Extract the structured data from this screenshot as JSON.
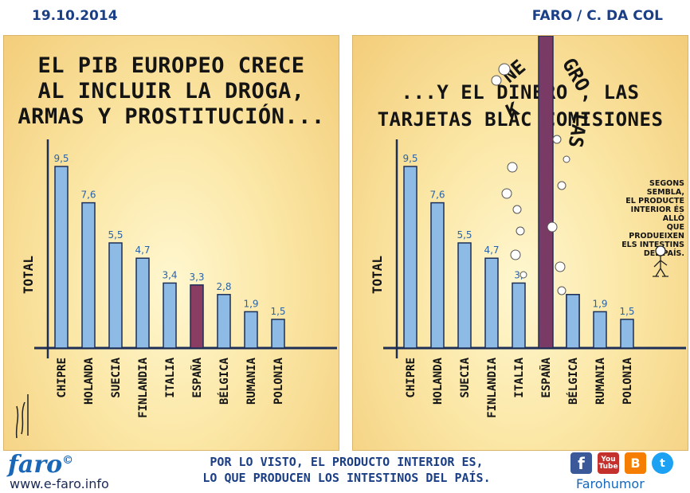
{
  "header": {
    "date": "19.10.2014",
    "credit": "FARO / C. DA COL"
  },
  "left_panel": {
    "caption": [
      "EL PIB EUROPEO CRECE",
      "AL INCLUIR LA DROGA,",
      "ARMAS Y PROSTITUCIÓN..."
    ]
  },
  "right_panel": {
    "caption": [
      "...Y EL DINERO                , LAS",
      "TARJETAS BLAC        COMISIONES"
    ],
    "falling_words": [
      "NE",
      "K",
      "GRO",
      "LAS"
    ],
    "side_note": [
      "SEGONS SEMBLA,",
      "EL PRODUCTE",
      "INTERIOR ÉS ALLÒ",
      "QUE PRODUEIXEN",
      "ELS INTESTINS",
      "DEL PAÍS."
    ]
  },
  "chart_data": [
    {
      "type": "bar",
      "ylabel": "TOTAL",
      "categories": [
        "CHIPRE",
        "HOLANDA",
        "SUECIA",
        "FINLANDIA",
        "ITALIA",
        "ESPAÑA",
        "BÉLGICA",
        "RUMANIA",
        "POLONIA"
      ],
      "values": [
        9.5,
        7.6,
        5.5,
        4.7,
        3.4,
        3.3,
        2.8,
        1.9,
        1.5
      ],
      "value_labels": [
        "9,5",
        "7,6",
        "5,5",
        "4,7",
        "3,4",
        "3,3",
        "2,8",
        "1,9",
        "1,5"
      ],
      "highlight_category": "ESPAÑA",
      "colors": {
        "bar": "#8dbbe6",
        "highlight": "#8a3d63",
        "outline": "#1d2f57"
      }
    },
    {
      "type": "bar",
      "ylabel": "TOTAL",
      "categories": [
        "CHIPRE",
        "HOLANDA",
        "SUECIA",
        "FINLANDIA",
        "ITALIA",
        "ESPAÑA",
        "BÉLGICA",
        "RUMANIA",
        "POLONIA"
      ],
      "values": [
        9.5,
        7.6,
        5.5,
        4.7,
        3.4,
        null,
        2.8,
        1.9,
        1.5
      ],
      "value_labels": [
        "9,5",
        "7,6",
        "5,5",
        "4,7",
        "3,",
        "",
        "",
        "1,9",
        "1,5"
      ],
      "highlight_category": "ESPAÑA",
      "colors": {
        "bar": "#8dbbe6",
        "highlight": "#7a3a66",
        "outline": "#1d2f57"
      }
    }
  ],
  "footer": {
    "logo": "faro",
    "logo_mark": "©",
    "url": "www.e-faro.info",
    "text": [
      "POR LO VISTO, EL PRODUCTO INTERIOR ES,",
      "LO QUE PRODUCEN LOS INTESTINOS DEL PAÍS."
    ],
    "social": {
      "facebook": "f",
      "youtube_top": "You",
      "youtube_bottom": "Tube",
      "blogger": "B",
      "twitter": "t"
    },
    "brand": "Farohumor"
  }
}
